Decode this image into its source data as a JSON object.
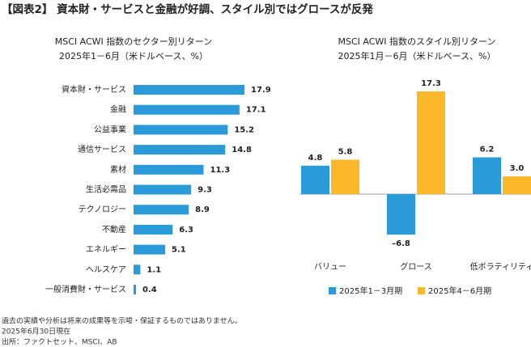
{
  "header": {
    "title": "【図表2】 資本財・サービスと金融が好調、スタイル別ではグロースが反発"
  },
  "chart_data": [
    {
      "type": "hbar",
      "title": "MSCI ACWI 指数のセクター別リターン",
      "subtitle": "2025年1－6月（米ドルベース、%）",
      "categories": [
        "資本財・サービス",
        "金融",
        "公益事業",
        "通信サービス",
        "素材",
        "生活必需品",
        "テクノロジー",
        "不動産",
        "エネルギー",
        "ヘルスケア",
        "一般消費財・サービス"
      ],
      "values": [
        17.9,
        17.1,
        15.2,
        14.8,
        11.3,
        9.3,
        8.9,
        6.3,
        5.1,
        1.1,
        0.4
      ],
      "color": "#2a9bd8"
    },
    {
      "type": "bar",
      "title": "MSCI ACWI 指数のスタイル別リターン",
      "subtitle": "2025年1月－6月（米ドルベース、%）",
      "categories": [
        "バリュー",
        "グロース",
        "低ボラティリティ"
      ],
      "series": [
        {
          "name": "2025年1－3月期",
          "color": "#2a9bd8",
          "values": [
            4.8,
            -6.8,
            6.2
          ],
          "value_labels": [
            "4.8",
            "–6.8",
            "6.2"
          ]
        },
        {
          "name": "2025年4－6月期",
          "color": "#fbb82a",
          "values": [
            5.8,
            17.3,
            3.0
          ],
          "value_labels": [
            "5.8",
            "17.3",
            "3.0"
          ]
        }
      ]
    }
  ],
  "footer": {
    "notes": [
      "過去の実績や分析は将来の成果等を示唆・保証するものではありません。",
      "2025年6月30日現在",
      "出所：ファクトセット、MSCI、AB"
    ]
  }
}
